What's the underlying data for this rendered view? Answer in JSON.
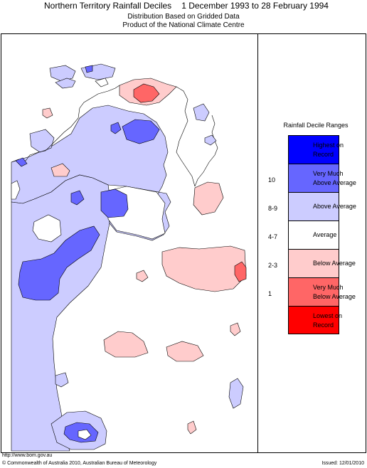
{
  "header": {
    "title": "Northern Territory Rainfall Deciles",
    "period": "1 December 1993 to 28 February 1994",
    "subtitle1": "Distribution Based on Gridded Data",
    "subtitle2": "Product of the National Climate Centre"
  },
  "legend": {
    "title": "Rainfall Decile Ranges",
    "items": [
      {
        "label_line1": "Highest on",
        "label_line2": "Record",
        "range": "",
        "color": "#0000ff"
      },
      {
        "label_line1": "Very Much",
        "label_line2": "Above Average",
        "range": "10",
        "color": "#6666ff"
      },
      {
        "label_line1": "Above Average",
        "label_line2": "",
        "range": "8-9",
        "color": "#ccccff"
      },
      {
        "label_line1": "Average",
        "label_line2": "",
        "range": "4-7",
        "color": "#ffffff"
      },
      {
        "label_line1": "Below Average",
        "label_line2": "",
        "range": "2-3",
        "color": "#ffcccc"
      },
      {
        "label_line1": "Very Much",
        "label_line2": "Below Average",
        "range": "1",
        "color": "#ff6666"
      },
      {
        "label_line1": "Lowest on",
        "label_line2": "Record",
        "range": "",
        "color": "#ff0000"
      }
    ]
  },
  "footer": {
    "url": "http://www.bom.gov.au",
    "copyright": "© Commonwealth of Australia 2010, Australian Bureau of Meteorology",
    "issued": "Issued: 12/01/2010"
  }
}
